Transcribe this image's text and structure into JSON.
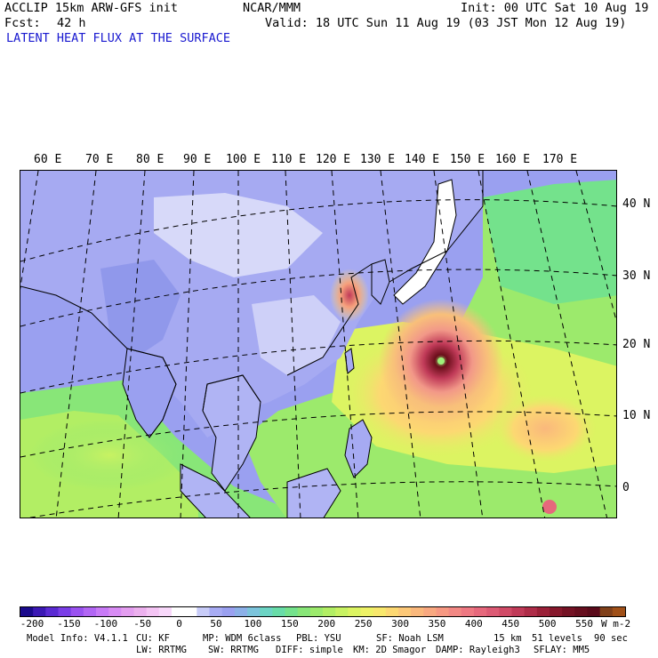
{
  "header": {
    "model": "ACCLIP 15km ARW-GFS init",
    "org": "NCAR/MMM",
    "init": "Init: 00 UTC Sat 10 Aug 19",
    "fcst_label": "Fcst:",
    "fcst_value": "42 h",
    "valid": "Valid: 18 UTC Sun 11 Aug 19 (03 JST Mon 12 Aug 19)",
    "field": "LATENT HEAT FLUX AT THE SURFACE"
  },
  "map": {
    "lon_labels": [
      "60 E",
      "70 E",
      "80 E",
      "90 E",
      "100 E",
      "110 E",
      "120 E",
      "130 E",
      "140 E",
      "150 E",
      "160 E",
      "170 E"
    ],
    "lat_labels": [
      "40 N",
      "30 N",
      "20 N",
      "10 N",
      "0"
    ],
    "typhoon_center": {
      "lon": 140,
      "lat": 18
    }
  },
  "colorbar": {
    "ticks": [
      "-200",
      "-150",
      "-100",
      "-50",
      "0",
      "50",
      "100",
      "150",
      "200",
      "250",
      "300",
      "350",
      "400",
      "450",
      "500",
      "550"
    ],
    "unit": "W m-2",
    "colors": [
      "#1a0a8c",
      "#3b18b4",
      "#5a2ad2",
      "#7a3ee6",
      "#9a52f0",
      "#b266f4",
      "#c87af6",
      "#d88cf4",
      "#e49ef0",
      "#ecb0ee",
      "#f4c4f4",
      "#f8d8fa",
      "#ffffff",
      "#ffffff",
      "#c8ccf8",
      "#a8acf4",
      "#9aa0f0",
      "#8cb0e8",
      "#7cc4dc",
      "#6cd4c4",
      "#68dca8",
      "#74e28c",
      "#88e678",
      "#9cea6c",
      "#b2ee64",
      "#c8f262",
      "#dcf462",
      "#eef266",
      "#f8e86c",
      "#fcd872",
      "#fcc878",
      "#fab87c",
      "#f8a880",
      "#f69882",
      "#f28884",
      "#ee7882",
      "#e6687c",
      "#dc5a74",
      "#d04a66",
      "#c03a58",
      "#ae2c48",
      "#9a2038",
      "#86182c",
      "#741224",
      "#660e1e",
      "#5a0a1a",
      "#80401a",
      "#a05018"
    ]
  },
  "footer": {
    "line1": [
      "Model Info: V4.1.1",
      "CU: KF",
      "MP: WDM 6class",
      "PBL: YSU",
      "SF: Noah LSM",
      "15 km",
      "51 levels",
      "90 sec"
    ],
    "line2": [
      "LW: RRTMG",
      "SW: RRTMG",
      "DIFF: simple",
      "KM: 2D Smagor",
      "DAMP: Rayleigh3",
      "SFLAY: MM5"
    ]
  }
}
